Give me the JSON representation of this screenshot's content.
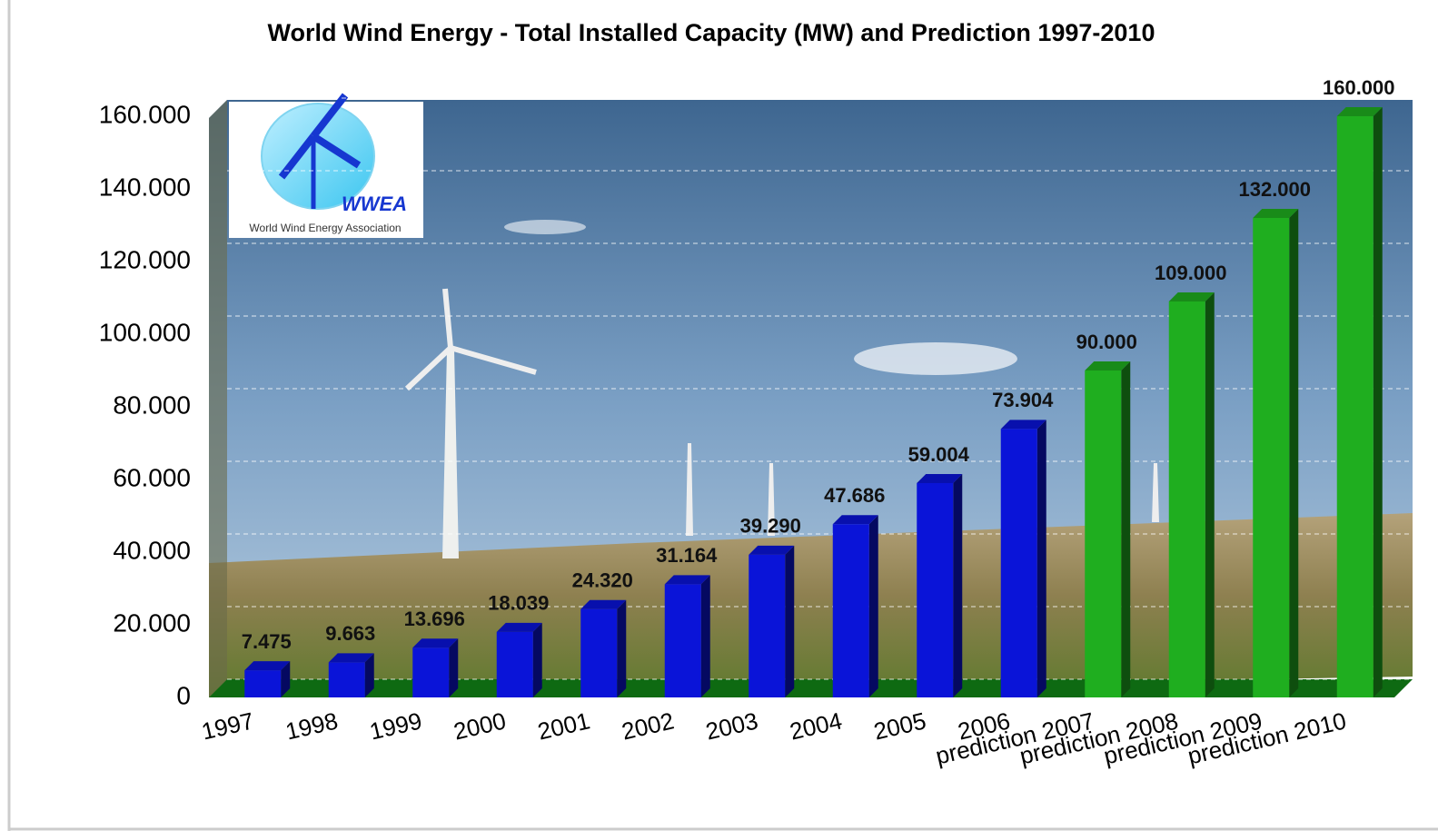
{
  "chart_data": {
    "type": "bar",
    "title": "World Wind Energy - Total Installed Capacity (MW) and Prediction 1997-2010",
    "categories": [
      "1997",
      "1998",
      "1999",
      "2000",
      "2001",
      "2002",
      "2003",
      "2004",
      "2005",
      "2006",
      "prediction 2007",
      "prediction 2008",
      "prediction 2009",
      "prediction 2010"
    ],
    "values": [
      7475,
      9663,
      13696,
      18039,
      24320,
      31164,
      39290,
      47686,
      59004,
      73904,
      90000,
      109000,
      132000,
      160000
    ],
    "value_labels": [
      "7.475",
      "9.663",
      "13.696",
      "18.039",
      "24.320",
      "31.164",
      "39.290",
      "47.686",
      "59.004",
      "73.904",
      "90.000",
      "109.000",
      "132.000",
      "160.000"
    ],
    "colors": [
      "#0a14d8",
      "#0a14d8",
      "#0a14d8",
      "#0a14d8",
      "#0a14d8",
      "#0a14d8",
      "#0a14d8",
      "#0a14d8",
      "#0a14d8",
      "#0a14d8",
      "#1fae1f",
      "#1fae1f",
      "#1fae1f",
      "#1fae1f"
    ],
    "ylim": [
      0,
      160000
    ],
    "yticks": [
      0,
      {
        "value": 20000,
        "label": "20.000"
      },
      {
        "value": 40000,
        "label": "40.000"
      },
      {
        "value": 60000,
        "label": "60.000"
      },
      {
        "value": 80000,
        "label": "80.000"
      },
      {
        "value": 100000,
        "label": "100.000"
      },
      {
        "value": 120000,
        "label": "120.000"
      },
      {
        "value": 140000,
        "label": "140.000"
      },
      {
        "value": 160000,
        "label": "160.000"
      }
    ],
    "grid": true,
    "logo": {
      "title": "WWEA",
      "subtitle": "World Wind Energy Association"
    }
  }
}
